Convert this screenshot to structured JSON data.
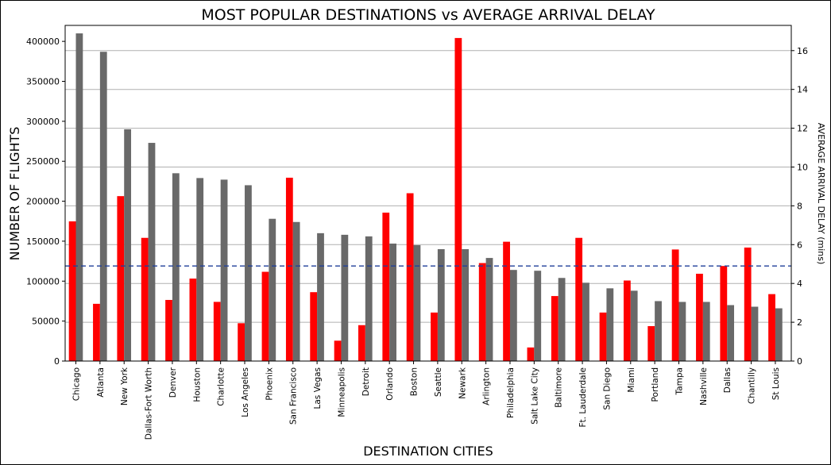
{
  "chart_data": {
    "type": "bar",
    "title": "MOST POPULAR DESTINATIONS vs AVERAGE ARRIVAL DELAY",
    "xlabel": "DESTINATION CITIES",
    "ylabel": "NUMBER OF FLIGHTS",
    "y2label": "AVERAGE ARRIVAL DELAY (mins)",
    "ylim": [
      0,
      420000
    ],
    "y2lim": [
      0,
      17.3
    ],
    "yticks": [
      0,
      50000,
      100000,
      150000,
      200000,
      250000,
      300000,
      350000,
      400000
    ],
    "y2ticks": [
      0,
      2,
      4,
      6,
      8,
      10,
      12,
      14,
      16
    ],
    "grid": "y2 horizontal",
    "reference_line": {
      "axis": "y2",
      "value": 4.9,
      "style": "dashed",
      "color": "#1f3f99"
    },
    "categories": [
      "Chicago",
      "Atlanta",
      "New York",
      "Dallas-Fort Worth",
      "Denver",
      "Houston",
      "Charlotte",
      "Los Angeles",
      "Phoenix",
      "San Francisco",
      "Las Vegas",
      "Minneapolis",
      "Detroit",
      "Orlando",
      "Boston",
      "Seattle",
      "Newark",
      "Arlington",
      "Philadelphia",
      "Salt Lake City",
      "Baltimore",
      "Ft. Lauderdale",
      "San Diego",
      "Miami",
      "Portland",
      "Tampa",
      "Nashville",
      "Dallas",
      "Chantilly",
      "St Louis"
    ],
    "series": [
      {
        "axis": "y2",
        "color": "#ff0000",
        "values": [
          7.2,
          2.95,
          8.5,
          6.35,
          3.15,
          4.25,
          3.05,
          1.95,
          4.6,
          9.45,
          3.55,
          1.05,
          1.85,
          7.65,
          8.65,
          2.5,
          16.65,
          5.05,
          6.15,
          0.7,
          3.35,
          6.35,
          2.5,
          4.15,
          1.8,
          5.75,
          4.5,
          4.9,
          5.85,
          3.45
        ]
      },
      {
        "axis": "y",
        "color": "#696969",
        "values": [
          410000,
          387000,
          290000,
          273000,
          235000,
          229000,
          227000,
          220000,
          178000,
          174000,
          160000,
          158000,
          156000,
          147000,
          145000,
          140000,
          140000,
          129000,
          114000,
          113000,
          104000,
          98000,
          91000,
          88000,
          75000,
          74000,
          74000,
          70000,
          68000,
          66000
        ]
      }
    ]
  }
}
